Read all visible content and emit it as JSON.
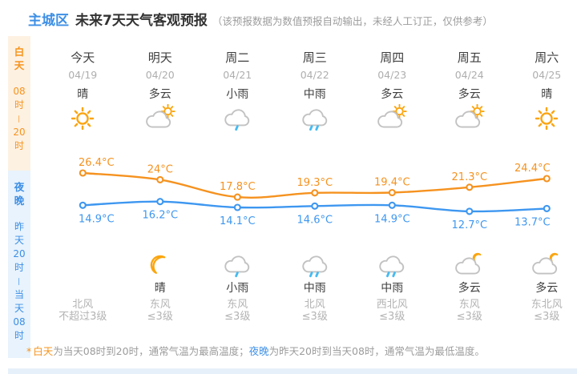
{
  "header": {
    "region": "主城区",
    "title": "未来7天天气客观预报",
    "note": "（该预报数据为数值预报自动输出，未经人工订正，仅供参考）"
  },
  "sidebar": {
    "day": {
      "label_chars": [
        "白",
        "天"
      ],
      "time_chars": [
        "08",
        "时",
        "—",
        "20",
        "时"
      ]
    },
    "night": {
      "label_chars": [
        "夜",
        "晚"
      ],
      "time_chars": [
        "昨",
        "天",
        "20",
        "时",
        "—",
        "当",
        "天",
        "08",
        "时"
      ]
    }
  },
  "columns": [
    {
      "day": "今天",
      "date": "04/19",
      "day_cond": "晴",
      "day_icon": "sun",
      "night_icon": "",
      "night_cond": "",
      "wind_dir": "北风",
      "wind_level": "不超过3级"
    },
    {
      "day": "明天",
      "date": "04/20",
      "day_cond": "多云",
      "day_icon": "cloud-sun",
      "night_icon": "moon",
      "night_cond": "晴",
      "wind_dir": "东风",
      "wind_level": "≤3级"
    },
    {
      "day": "周二",
      "date": "04/21",
      "day_cond": "小雨",
      "day_icon": "cloud-rain-1",
      "night_icon": "cloud-rain-1",
      "night_cond": "小雨",
      "wind_dir": "东风",
      "wind_level": "≤3级"
    },
    {
      "day": "周三",
      "date": "04/22",
      "day_cond": "中雨",
      "day_icon": "cloud-rain-2",
      "night_icon": "cloud-rain-2",
      "night_cond": "中雨",
      "wind_dir": "北风",
      "wind_level": "≤3级"
    },
    {
      "day": "周四",
      "date": "04/23",
      "day_cond": "多云",
      "day_icon": "cloud-sun",
      "night_icon": "cloud-rain-2",
      "night_cond": "中雨",
      "wind_dir": "西北风",
      "wind_level": "≤3级"
    },
    {
      "day": "周五",
      "date": "04/24",
      "day_cond": "多云",
      "day_icon": "cloud-sun",
      "night_icon": "cloud-moon",
      "night_cond": "多云",
      "wind_dir": "东风",
      "wind_level": "≤3级"
    },
    {
      "day": "周六",
      "date": "04/25",
      "day_cond": "晴",
      "day_icon": "sun",
      "night_icon": "cloud-moon",
      "night_cond": "多云",
      "wind_dir": "东北风",
      "wind_level": "≤3级"
    }
  ],
  "chart_data": {
    "type": "line",
    "categories": [
      "04/19",
      "04/20",
      "04/21",
      "04/22",
      "04/23",
      "04/24",
      "04/25"
    ],
    "series": [
      {
        "name": "白天最高温度",
        "color": "#F5921F",
        "values": [
          26.4,
          24,
          17.8,
          19.3,
          19.4,
          21.3,
          24.4
        ],
        "labels": [
          "26.4°C",
          "24°C",
          "17.8°C",
          "19.3°C",
          "19.4°C",
          "21.3°C",
          "24.4°C"
        ]
      },
      {
        "name": "夜晚最低温度",
        "color": "#3E97F0",
        "values": [
          14.9,
          16.2,
          14.1,
          14.6,
          14.9,
          12.7,
          13.7
        ],
        "labels": [
          "14.9°C",
          "16.2°C",
          "14.1°C",
          "14.6°C",
          "14.9°C",
          "12.7°C",
          "13.7°C"
        ]
      }
    ],
    "unit": "°C",
    "ylim": [
      12,
      27
    ],
    "grid": false,
    "legend": "none"
  },
  "footnote": {
    "star": "*",
    "day_label": "白天",
    "day_text": "为当天08时到20时，通常气温为最高温度；",
    "night_label": "夜晚",
    "night_text": "为昨天20时到当天08时，通常气温为最低温度。"
  },
  "theme": {
    "accent_orange": "#F7941E",
    "accent_blue": "#3D8FE5",
    "line_orange": "#F5921F",
    "line_blue": "#3E97F0",
    "cloud_gray": "#C2C2C2",
    "drop_blue": "#45BBF3",
    "sun_orange": "#FBA50F",
    "day_bg": "#FDF1E2",
    "night_bg": "#E8F3FD"
  }
}
